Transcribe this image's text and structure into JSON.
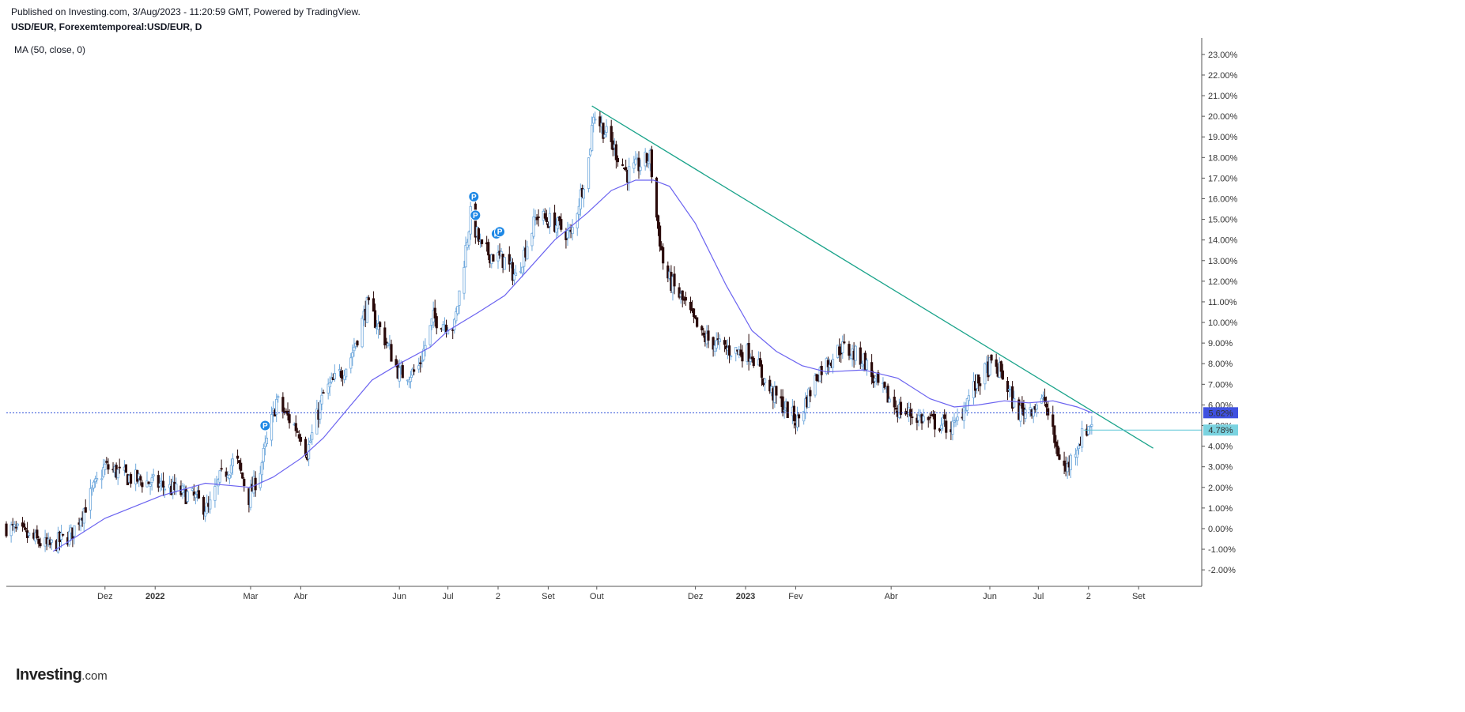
{
  "header": {
    "published": "Published on Investing.com, 3/Aug/2023 - 11:20:59 GMT, Powered by TradingView.",
    "symbol": "USD/EUR, Forexemtemporeal:USD/EUR, D"
  },
  "indicator_label": "MA (50, close, 0)",
  "logo": {
    "brand": "Investing",
    "suffix": ".com"
  },
  "colors": {
    "candle_up": "#6fa8dc",
    "candle_down": "#2a0a0a",
    "ma_line": "#6b63f0",
    "trendline": "#1aa38a",
    "current_line": "#2f4fd8",
    "current_badge": "#3f51e0",
    "level_badge": "#7ad3e0",
    "event_marker": "#1e88e5",
    "axis": "#555555"
  },
  "chart_data": {
    "type": "candlestick",
    "y_unit": "%",
    "ylim": [
      -2.8,
      23.8
    ],
    "y_ticks": [
      "23.00%",
      "22.00%",
      "21.00%",
      "20.00%",
      "19.00%",
      "18.00%",
      "17.00%",
      "16.00%",
      "15.00%",
      "14.00%",
      "13.00%",
      "12.00%",
      "11.00%",
      "10.00%",
      "9.00%",
      "8.00%",
      "7.00%",
      "6.00%",
      "5.00%",
      "4.00%",
      "3.00%",
      "2.00%",
      "1.00%",
      "0.00%",
      "-1.00%",
      "-2.00%"
    ],
    "y_tick_values": [
      23,
      22,
      21,
      20,
      19,
      18,
      17,
      16,
      15,
      14,
      13,
      12,
      11,
      10,
      9,
      8,
      7,
      6,
      5,
      4,
      3,
      2,
      1,
      0,
      -1,
      -2
    ],
    "x_ticks": [
      {
        "label": "Dez",
        "date": "2021-12-01"
      },
      {
        "label": "2022",
        "date": "2022-01-01"
      },
      {
        "label": "Mar",
        "date": "2022-03-01"
      },
      {
        "label": "Abr",
        "date": "2022-04-01"
      },
      {
        "label": "Jun",
        "date": "2022-06-01"
      },
      {
        "label": "Jul",
        "date": "2022-07-01"
      },
      {
        "label": "2",
        "date": "2022-08-01"
      },
      {
        "label": "Set",
        "date": "2022-09-01"
      },
      {
        "label": "Out",
        "date": "2022-10-01"
      },
      {
        "label": "Dez",
        "date": "2022-12-01"
      },
      {
        "label": "2023",
        "date": "2023-01-01"
      },
      {
        "label": "Fev",
        "date": "2023-02-01"
      },
      {
        "label": "Abr",
        "date": "2023-04-01"
      },
      {
        "label": "Jun",
        "date": "2023-06-01"
      },
      {
        "label": "Jul",
        "date": "2023-07-01"
      },
      {
        "label": "2",
        "date": "2023-08-01"
      },
      {
        "label": "Set",
        "date": "2023-09-01"
      }
    ],
    "x_range": [
      "2021-10-01",
      "2023-10-10"
    ],
    "price_path": [
      [
        "2021-10-01",
        0.1
      ],
      [
        "2021-10-20",
        -0.6
      ],
      [
        "2021-10-27",
        -0.9
      ],
      [
        "2021-11-10",
        -0.3
      ],
      [
        "2021-11-22",
        1.6
      ],
      [
        "2021-12-01",
        3.0
      ],
      [
        "2021-12-15",
        2.5
      ],
      [
        "2022-01-05",
        2.1
      ],
      [
        "2022-01-25",
        1.5
      ],
      [
        "2022-02-03",
        0.9
      ],
      [
        "2022-02-10",
        2.4
      ],
      [
        "2022-02-20",
        3.4
      ],
      [
        "2022-02-28",
        1.5
      ],
      [
        "2022-03-07",
        2.9
      ],
      [
        "2022-03-17",
        6.2
      ],
      [
        "2022-03-22",
        5.6
      ],
      [
        "2022-04-01",
        4.6
      ],
      [
        "2022-04-05",
        3.7
      ],
      [
        "2022-04-15",
        6.5
      ],
      [
        "2022-05-01",
        8.1
      ],
      [
        "2022-05-12",
        10.8
      ],
      [
        "2022-05-22",
        9.4
      ],
      [
        "2022-06-01",
        7.5
      ],
      [
        "2022-06-12",
        7.6
      ],
      [
        "2022-06-22",
        10.2
      ],
      [
        "2022-07-05",
        9.8
      ],
      [
        "2022-07-15",
        15.2
      ],
      [
        "2022-07-22",
        13.5
      ],
      [
        "2022-08-05",
        13.0
      ],
      [
        "2022-08-12",
        12.2
      ],
      [
        "2022-08-25",
        15.2
      ],
      [
        "2022-09-05",
        14.8
      ],
      [
        "2022-09-15",
        14.2
      ],
      [
        "2022-09-26",
        17.9
      ],
      [
        "2022-09-29",
        20.2
      ],
      [
        "2022-10-12",
        18.4
      ],
      [
        "2022-10-20",
        17.2
      ],
      [
        "2022-11-03",
        18.0
      ],
      [
        "2022-11-07",
        15.1
      ],
      [
        "2022-11-12",
        12.4
      ],
      [
        "2022-11-25",
        10.8
      ],
      [
        "2022-12-05",
        9.3
      ],
      [
        "2022-12-20",
        8.7
      ],
      [
        "2023-01-05",
        8.5
      ],
      [
        "2023-01-15",
        6.8
      ],
      [
        "2023-01-25",
        5.9
      ],
      [
        "2023-02-02",
        5.2
      ],
      [
        "2023-02-15",
        7.6
      ],
      [
        "2023-03-01",
        8.8
      ],
      [
        "2023-03-15",
        8.2
      ],
      [
        "2023-03-22",
        7.1
      ],
      [
        "2023-04-05",
        5.8
      ],
      [
        "2023-04-25",
        5.2
      ],
      [
        "2023-05-10",
        4.9
      ],
      [
        "2023-05-20",
        6.6
      ],
      [
        "2023-06-01",
        7.9
      ],
      [
        "2023-06-08",
        7.6
      ],
      [
        "2023-06-18",
        5.6
      ],
      [
        "2023-07-05",
        6.2
      ],
      [
        "2023-07-12",
        3.9
      ],
      [
        "2023-07-18",
        2.8
      ],
      [
        "2023-07-25",
        4.1
      ],
      [
        "2023-08-03",
        5.2
      ]
    ],
    "moving_average": [
      [
        "2021-10-30",
        -1.1
      ],
      [
        "2021-12-01",
        0.5
      ],
      [
        "2022-01-05",
        1.6
      ],
      [
        "2022-02-01",
        2.2
      ],
      [
        "2022-03-01",
        2.0
      ],
      [
        "2022-03-15",
        2.5
      ],
      [
        "2022-04-01",
        3.4
      ],
      [
        "2022-04-15",
        4.4
      ],
      [
        "2022-05-01",
        5.9
      ],
      [
        "2022-05-15",
        7.2
      ],
      [
        "2022-06-01",
        8.0
      ],
      [
        "2022-06-20",
        8.8
      ],
      [
        "2022-07-01",
        9.6
      ],
      [
        "2022-07-20",
        10.5
      ],
      [
        "2022-08-05",
        11.3
      ],
      [
        "2022-08-20",
        12.6
      ],
      [
        "2022-09-05",
        14.0
      ],
      [
        "2022-09-25",
        15.3
      ],
      [
        "2022-10-10",
        16.4
      ],
      [
        "2022-10-25",
        16.9
      ],
      [
        "2022-11-05",
        16.9
      ],
      [
        "2022-11-15",
        16.6
      ],
      [
        "2022-12-01",
        14.8
      ],
      [
        "2022-12-20",
        11.8
      ],
      [
        "2023-01-05",
        9.6
      ],
      [
        "2023-01-20",
        8.6
      ],
      [
        "2023-02-05",
        7.9
      ],
      [
        "2023-02-20",
        7.6
      ],
      [
        "2023-03-15",
        7.7
      ],
      [
        "2023-04-05",
        7.3
      ],
      [
        "2023-04-25",
        6.3
      ],
      [
        "2023-05-10",
        5.9
      ],
      [
        "2023-05-25",
        6.0
      ],
      [
        "2023-06-10",
        6.2
      ],
      [
        "2023-06-25",
        6.1
      ],
      [
        "2023-07-10",
        6.2
      ],
      [
        "2023-07-25",
        5.9
      ],
      [
        "2023-08-03",
        5.62
      ]
    ],
    "trendline": {
      "start": [
        "2022-09-28",
        20.5
      ],
      "end": [
        "2023-09-10",
        3.9
      ]
    },
    "current_value": {
      "value": 5.62,
      "label": "5.62%"
    },
    "level_value": {
      "value": 4.78,
      "label": "4.78%",
      "start_date": "2023-07-29"
    },
    "event_markers": [
      {
        "date": "2022-03-10",
        "value": 5.0,
        "label": "P"
      },
      {
        "date": "2022-07-17",
        "value": 16.1,
        "label": "P"
      },
      {
        "date": "2022-07-18",
        "value": 15.2,
        "label": "P"
      },
      {
        "date": "2022-07-31",
        "value": 14.3,
        "label": "P"
      },
      {
        "date": "2022-08-02",
        "value": 14.4,
        "label": "P"
      }
    ]
  }
}
